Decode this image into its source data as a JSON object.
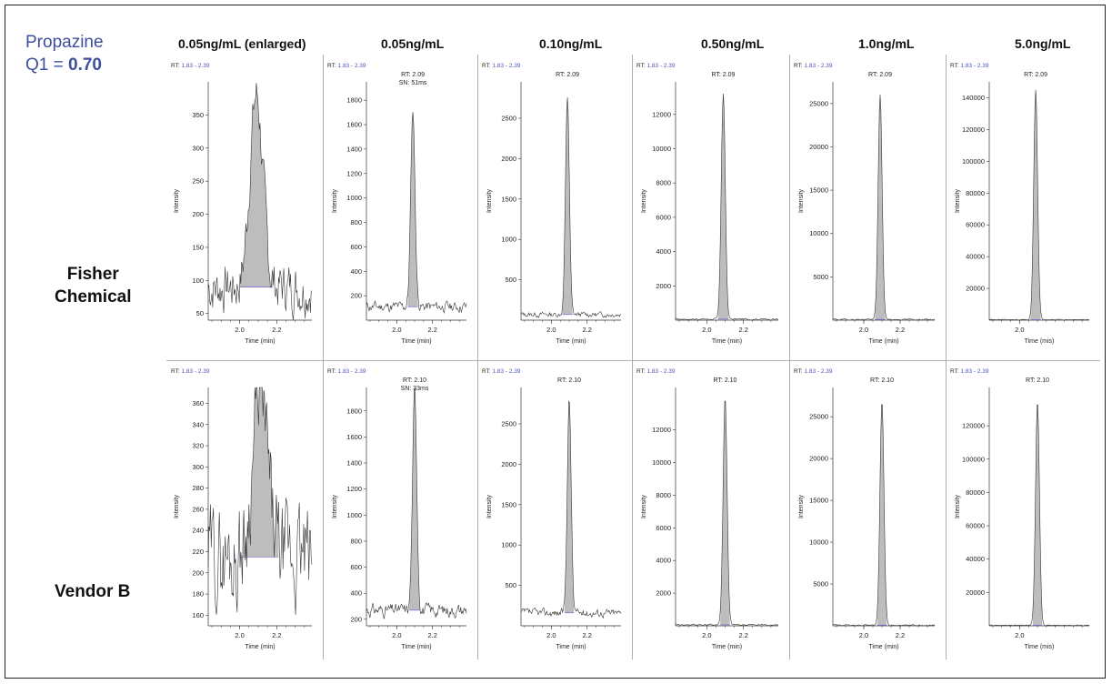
{
  "compound": {
    "name": "Propazine",
    "q1_prefix": "Q1 = ",
    "q1_value": "0.70"
  },
  "rows": [
    "Fisher\nChemical",
    "Vendor B"
  ],
  "columns": [
    "0.05ng/mL (enlarged)",
    "0.05ng/mL",
    "0.10ng/mL",
    "0.50ng/mL",
    "1.0ng/mL",
    "5.0ng/mL"
  ],
  "colors": {
    "title": "#3d4e9c",
    "rt_prefix": "#222222",
    "rt_range": "#4b57b8",
    "trace": "#333333",
    "fill": "#bdbdbd",
    "baseline": "#6a6ad8",
    "grid_line": "#9a9a9a"
  },
  "chart_data": [
    {
      "type": "line",
      "row": "Fisher Chemical",
      "column": "0.05ng/mL (enlarged)",
      "rt_prefix": "RT:",
      "rt_range": "1.83 - 2.39",
      "peak_label": "",
      "xlabel": "Time (min)",
      "ylabel": "Intensity",
      "xlim": [
        1.83,
        2.39
      ],
      "ylim": [
        40,
        400
      ],
      "xticks": [
        "2.0",
        "2.2"
      ],
      "yticks": [
        50,
        100,
        150,
        200,
        250,
        300,
        350
      ],
      "peak": {
        "rt": 2.09,
        "height": 380,
        "width": 0.035
      },
      "baseline": 90,
      "noise": 30,
      "seed": 7
    },
    {
      "type": "line",
      "row": "Fisher Chemical",
      "column": "0.05ng/mL",
      "rt_prefix": "RT:",
      "rt_range": "1.83 - 2.39",
      "peak_label": "RT: 2.09\nSN: 51ms",
      "xlabel": "Time (min)",
      "ylabel": "Intensity",
      "xlim": [
        1.83,
        2.39
      ],
      "ylim": [
        0,
        1950
      ],
      "xticks": [
        "2.0",
        "2.2"
      ],
      "yticks": [
        200,
        400,
        600,
        800,
        1000,
        1200,
        1400,
        1600,
        1800
      ],
      "peak": {
        "rt": 2.09,
        "height": 1720,
        "width": 0.012
      },
      "baseline": 110,
      "noise": 35,
      "seed": 11
    },
    {
      "type": "line",
      "row": "Fisher Chemical",
      "column": "0.10ng/mL",
      "rt_prefix": "RT:",
      "rt_range": "1.83 - 2.39",
      "peak_label": "RT: 2.09",
      "xlabel": "Time (min)",
      "ylabel": "Intensity",
      "xlim": [
        1.83,
        2.39
      ],
      "ylim": [
        0,
        2950
      ],
      "xticks": [
        "2.0",
        "2.2"
      ],
      "yticks": [
        500,
        1000,
        1500,
        2000,
        2500
      ],
      "peak": {
        "rt": 2.09,
        "height": 2760,
        "width": 0.011
      },
      "baseline": 70,
      "noise": 25,
      "seed": 13
    },
    {
      "type": "line",
      "row": "Fisher Chemical",
      "column": "0.50ng/mL",
      "rt_prefix": "RT:",
      "rt_range": "1.83 - 2.39",
      "peak_label": "RT: 2.09",
      "xlabel": "Time (min)",
      "ylabel": "Intensity",
      "xlim": [
        1.83,
        2.39
      ],
      "ylim": [
        0,
        13900
      ],
      "xticks": [
        "2.0",
        "2.2"
      ],
      "yticks": [
        2000,
        4000,
        6000,
        8000,
        10000,
        12000
      ],
      "peak": {
        "rt": 2.09,
        "height": 13200,
        "width": 0.011
      },
      "baseline": 60,
      "noise": 40,
      "seed": 17
    },
    {
      "type": "line",
      "row": "Fisher Chemical",
      "column": "1.0ng/mL",
      "rt_prefix": "RT:",
      "rt_range": "1.83 - 2.39",
      "peak_label": "RT: 2.09",
      "xlabel": "Time (min)",
      "ylabel": "Intensity",
      "xlim": [
        1.83,
        2.39
      ],
      "ylim": [
        0,
        27500
      ],
      "xticks": [
        "2.0",
        "2.2"
      ],
      "yticks": [
        5000,
        10000,
        15000,
        20000,
        25000
      ],
      "peak": {
        "rt": 2.09,
        "height": 26000,
        "width": 0.011
      },
      "baseline": 80,
      "noise": 60,
      "seed": 19
    },
    {
      "type": "line",
      "row": "Fisher Chemical",
      "column": "5.0ng/mL",
      "rt_prefix": "RT:",
      "rt_range": "1.83 - 2.39",
      "peak_label": "RT: 2.09",
      "xlabel": "Time (mis)",
      "ylabel": "Intensity",
      "xlim": [
        1.83,
        2.39
      ],
      "ylim": [
        0,
        150000
      ],
      "xticks": [
        "2.0"
      ],
      "yticks": [
        20000,
        40000,
        60000,
        80000,
        100000,
        120000,
        140000
      ],
      "peak": {
        "rt": 2.09,
        "height": 145000,
        "width": 0.011
      },
      "baseline": 300,
      "noise": 200,
      "seed": 23
    },
    {
      "type": "line",
      "row": "Vendor B",
      "column": "0.05ng/mL (enlarged)",
      "rt_prefix": "RT:",
      "rt_range": "1.83 - 2.39",
      "peak_label": "",
      "xlabel": "Time (min)",
      "ylabel": "Intensity",
      "xlim": [
        1.83,
        2.39
      ],
      "ylim": [
        150,
        375
      ],
      "xticks": [
        "2.0",
        "2.2"
      ],
      "yticks": [
        160,
        180,
        200,
        220,
        240,
        260,
        280,
        300,
        320,
        340,
        360
      ],
      "peak": {
        "rt": 2.11,
        "height": 370,
        "width": 0.04
      },
      "baseline": 215,
      "noise": 38,
      "seed": 29
    },
    {
      "type": "line",
      "row": "Vendor B",
      "column": "0.05ng/mL",
      "rt_prefix": "RT:",
      "rt_range": "1.83 - 2.39",
      "peak_label": "RT: 2.10\nSN: 33ms",
      "xlabel": "Time (min)",
      "ylabel": "Intensity",
      "xlim": [
        1.83,
        2.39
      ],
      "ylim": [
        150,
        1980
      ],
      "xticks": [
        "2.0",
        "2.2"
      ],
      "yticks": [
        200,
        400,
        600,
        800,
        1000,
        1200,
        1400,
        1600,
        1800
      ],
      "peak": {
        "rt": 2.1,
        "height": 1950,
        "width": 0.012
      },
      "baseline": 270,
      "noise": 40,
      "seed": 31
    },
    {
      "type": "line",
      "row": "Vendor B",
      "column": "0.10ng/mL",
      "rt_prefix": "RT:",
      "rt_range": "1.83 - 2.39",
      "peak_label": "RT: 2.10",
      "xlabel": "Time (min)",
      "ylabel": "Intensity",
      "xlim": [
        1.83,
        2.39
      ],
      "ylim": [
        0,
        2950
      ],
      "xticks": [
        "2.0",
        "2.2"
      ],
      "yticks": [
        500,
        1000,
        1500,
        2000,
        2500
      ],
      "peak": {
        "rt": 2.1,
        "height": 2800,
        "width": 0.011
      },
      "baseline": 160,
      "noise": 40,
      "seed": 37
    },
    {
      "type": "line",
      "row": "Vendor B",
      "column": "0.50ng/mL",
      "rt_prefix": "RT:",
      "rt_range": "1.83 - 2.39",
      "peak_label": "RT: 2.10",
      "xlabel": "Time (min)",
      "ylabel": "Intensity",
      "xlim": [
        1.83,
        2.39
      ],
      "ylim": [
        0,
        14600
      ],
      "xticks": [
        "2.0",
        "2.2"
      ],
      "yticks": [
        2000,
        4000,
        6000,
        8000,
        10000,
        12000
      ],
      "peak": {
        "rt": 2.1,
        "height": 14000,
        "width": 0.011
      },
      "baseline": 60,
      "noise": 40,
      "seed": 41
    },
    {
      "type": "line",
      "row": "Vendor B",
      "column": "1.0ng/mL",
      "rt_prefix": "RT:",
      "rt_range": "1.83 - 2.39",
      "peak_label": "RT: 2.10",
      "xlabel": "Time (min)",
      "ylabel": "Intensity",
      "xlim": [
        1.83,
        2.39
      ],
      "ylim": [
        0,
        28500
      ],
      "xticks": [
        "2.0",
        "2.2"
      ],
      "yticks": [
        5000,
        10000,
        15000,
        20000,
        25000
      ],
      "peak": {
        "rt": 2.1,
        "height": 26800,
        "width": 0.011
      },
      "baseline": 80,
      "noise": 60,
      "seed": 43
    },
    {
      "type": "line",
      "row": "Vendor B",
      "column": "5.0ng/mL",
      "rt_prefix": "RT:",
      "rt_range": "1.83 - 2.39",
      "peak_label": "RT: 2.10",
      "xlabel": "Time (mis)",
      "ylabel": "Intensity",
      "xlim": [
        1.83,
        2.39
      ],
      "ylim": [
        0,
        143000
      ],
      "xticks": [
        "2.0"
      ],
      "yticks": [
        20000,
        40000,
        60000,
        80000,
        100000,
        120000
      ],
      "peak": {
        "rt": 2.1,
        "height": 135000,
        "width": 0.011
      },
      "baseline": 300,
      "noise": 200,
      "seed": 47
    }
  ]
}
